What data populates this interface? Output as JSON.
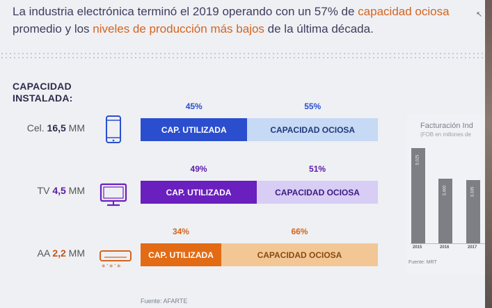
{
  "headline": {
    "part1": "La industria electrónica terminó el 2019 operando con un 57% de ",
    "highlight1": "capacidad ociosa",
    "part2": "promedio y los ",
    "highlight2": "niveles de producción más bajos",
    "part3": " de la última década."
  },
  "installed_capacity_title": [
    "CAPACIDAD",
    "INSTALADA:"
  ],
  "colors": {
    "text_dark": "#3d3d5c",
    "highlight": "#d4641e",
    "cel_used": "#2b4ecf",
    "cel_idle": "#c6d9f5",
    "tv_used": "#6a1fbf",
    "tv_idle": "#d8cdf5",
    "aa_used": "#e36b14",
    "aa_idle": "#f2c795"
  },
  "chart_data": [
    {
      "type": "bar",
      "orientation": "horizontal",
      "stacked": true,
      "unit": "%",
      "categories": [
        "Cel.",
        "TV",
        "AA"
      ],
      "capacity_values": [
        "16,5",
        "4,5",
        "2,2"
      ],
      "capacity_unit": "MM",
      "icons": [
        "phone-icon",
        "tv-icon",
        "air-conditioner-icon"
      ],
      "series": [
        {
          "name": "CAP. UTILIZADA",
          "values": [
            45,
            49,
            34
          ]
        },
        {
          "name": "CAPACIDAD OCIOSA",
          "values": [
            55,
            51,
            66
          ]
        }
      ],
      "percent_labels": {
        "used": [
          "45%",
          "49%",
          "34%"
        ],
        "idle": [
          "55%",
          "51%",
          "66%"
        ]
      },
      "source": "Fuente: AFARTE"
    },
    {
      "type": "bar",
      "orientation": "vertical",
      "title": "Facturación Ind",
      "subtitle": "(FOB en millones de",
      "categories": [
        "2015",
        "2016",
        "2017"
      ],
      "values": [
        5025,
        3400,
        3335
      ],
      "value_labels": [
        "5.025",
        "3.400",
        "3.335"
      ],
      "source": "Fuente: MRT"
    }
  ]
}
